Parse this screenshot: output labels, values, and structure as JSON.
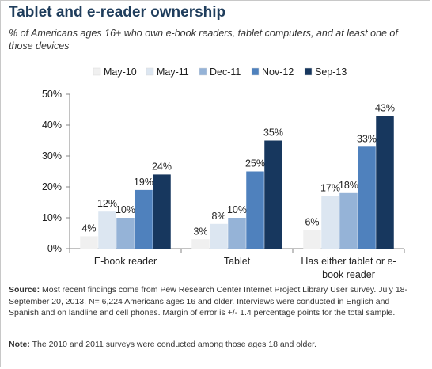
{
  "header": {
    "title": "Tablet and e-reader ownership",
    "subtitle": "% of Americans ages 16+ who own e-book readers, tablet computers, and at least one of those devices"
  },
  "footer": {
    "source_label": "Source:",
    "source_text": "Most recent findings come from Pew Research Center Internet Project Library User survey. July 18-September 20, 2013. N= 6,224 Americans ages 16 and older. Interviews were conducted in English and Spanish and on landline and cell phones. Margin of error is +/- 1.4 percentage points for the total sample.",
    "note_label": "Note:",
    "note_text": "The 2010 and 2011 surveys were conducted among those ages 18 and older."
  },
  "chart_data": {
    "type": "bar",
    "title": "Tablet and e-reader ownership",
    "subtitle": "% of Americans ages 16+ who own e-book readers, tablet computers, and at least one of those devices",
    "categories": [
      "E-book reader",
      "Tablet",
      "Has either tablet or e-book reader"
    ],
    "category_label_lines": [
      [
        "E-book reader"
      ],
      [
        "Tablet"
      ],
      [
        "Has either tablet or e-",
        "book reader"
      ]
    ],
    "series": [
      {
        "name": "May-10",
        "color": "#f0f0f0",
        "values": [
          4,
          3,
          6
        ],
        "labels": [
          "4%",
          "3%",
          "6%"
        ]
      },
      {
        "name": "May-11",
        "color": "#dce6f1",
        "values": [
          12,
          8,
          17
        ],
        "labels": [
          "12%",
          "8%",
          "17%"
        ]
      },
      {
        "name": "Dec-11",
        "color": "#95b3d7",
        "values": [
          10,
          10,
          18
        ],
        "labels": [
          "10%",
          "10%",
          "18%"
        ]
      },
      {
        "name": "Nov-12",
        "color": "#4f81bd",
        "values": [
          19,
          25,
          33
        ],
        "labels": [
          "19%",
          "25%",
          "33%"
        ]
      },
      {
        "name": "Sep-13",
        "color": "#17375e",
        "values": [
          24,
          35,
          43
        ],
        "labels": [
          "24%",
          "35%",
          "43%"
        ]
      }
    ],
    "ylim": [
      0,
      50
    ],
    "y_ticks": [
      0,
      10,
      20,
      30,
      40,
      50
    ],
    "y_tick_labels": [
      "0%",
      "10%",
      "20%",
      "30%",
      "40%",
      "50%"
    ],
    "legend_position": "top",
    "grid": false
  }
}
